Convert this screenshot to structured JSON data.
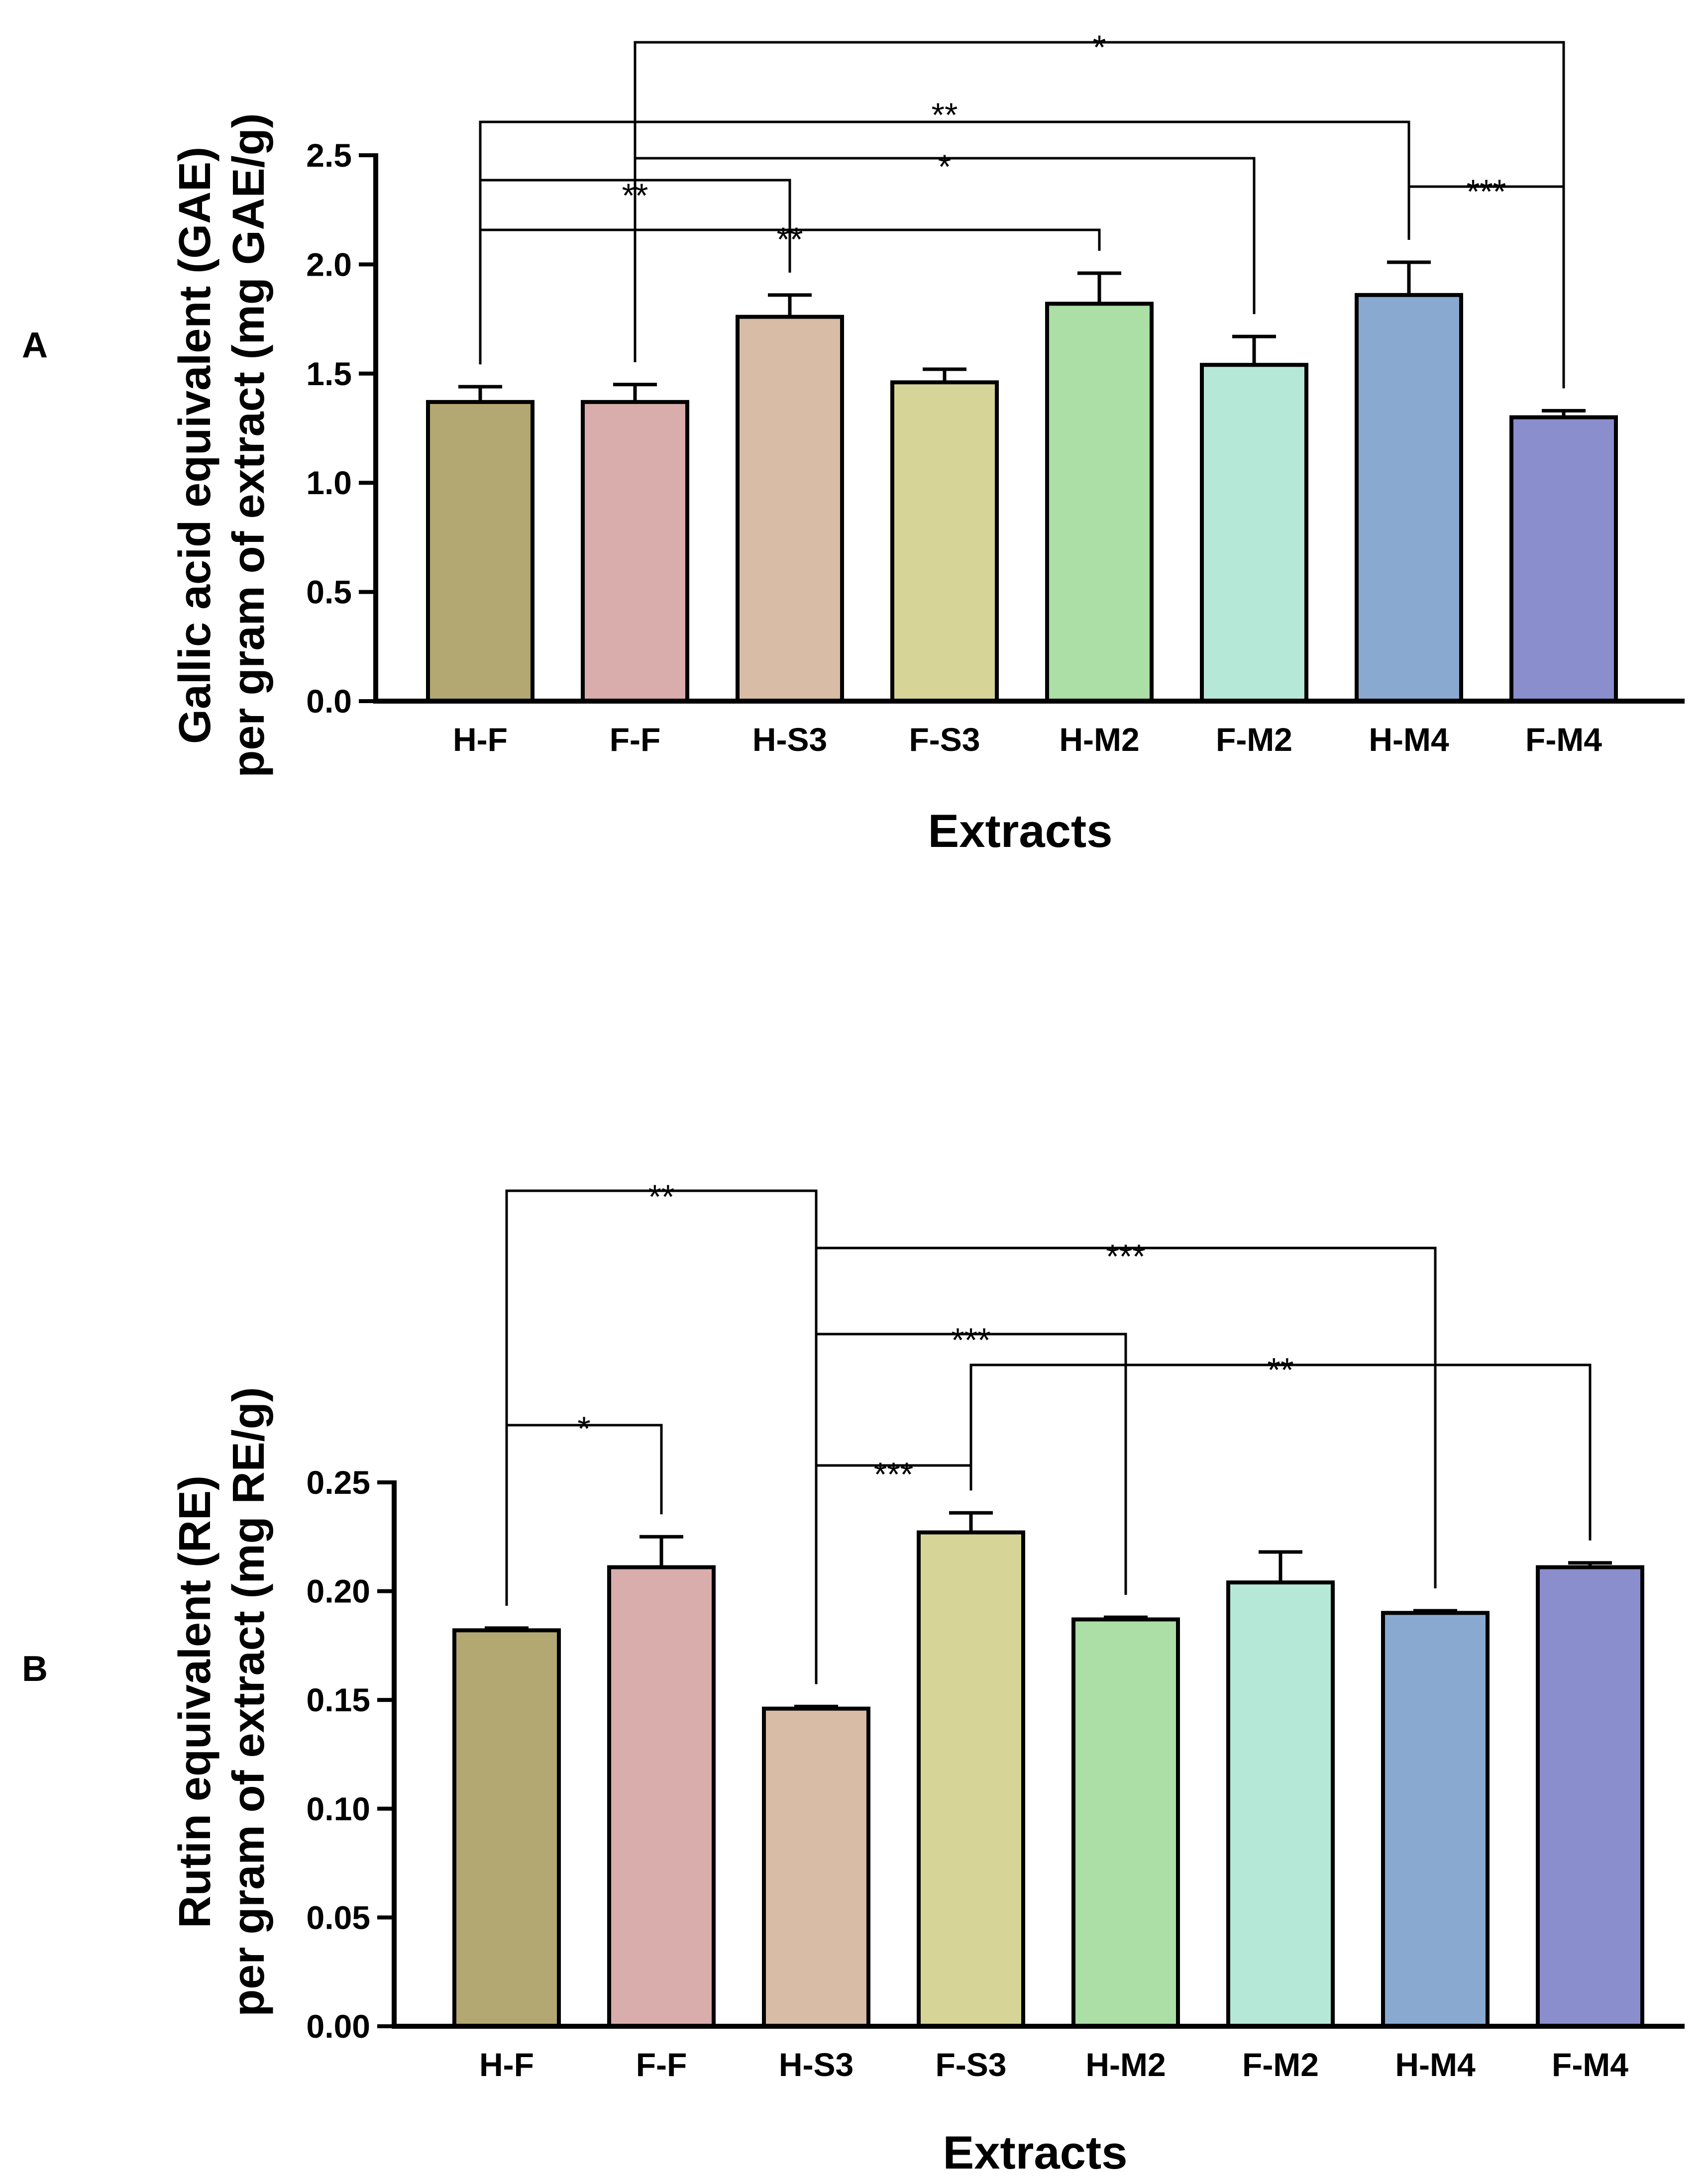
{
  "chart_data": [
    {
      "panel": "A",
      "type": "bar",
      "categories": [
        "H-F",
        "F-F",
        "H-S3",
        "F-S3",
        "H-M2",
        "F-M2",
        "H-M4",
        "F-M4"
      ],
      "values": [
        1.37,
        1.37,
        1.76,
        1.46,
        1.82,
        1.54,
        1.86,
        1.3
      ],
      "errors": [
        0.07,
        0.08,
        0.1,
        0.06,
        0.14,
        0.13,
        0.15,
        0.03
      ],
      "colors": [
        "#b3a772",
        "#d8adab",
        "#d9bca6",
        "#d6d597",
        "#acdfa6",
        "#b6e8d8",
        "#89a9d1",
        "#8a8ecc"
      ],
      "ylim": [
        0,
        2.5
      ],
      "yticks": [
        "0.0",
        "0.5",
        "1.0",
        "1.5",
        "2.0",
        "2.5"
      ],
      "xlabel": "Extracts",
      "ylabel_line1": "Gallic acid equivalent (GAE)",
      "ylabel_line2": "per gram of extract (mg GAE/g)",
      "significance": [
        {
          "from": 1,
          "to": 7,
          "label": "*"
        },
        {
          "from": 0,
          "to": 6,
          "label": "**"
        },
        {
          "from": 0,
          "to": 2,
          "label": "**"
        },
        {
          "from": 1,
          "to": 5,
          "label": "*"
        },
        {
          "from": 0,
          "to": 4,
          "label": "**"
        },
        {
          "from": 6,
          "to": 7,
          "label": "***"
        }
      ]
    },
    {
      "panel": "B",
      "type": "bar",
      "categories": [
        "H-F",
        "F-F",
        "H-S3",
        "F-S3",
        "H-M2",
        "F-M2",
        "H-M4",
        "F-M4"
      ],
      "values": [
        0.182,
        0.211,
        0.146,
        0.227,
        0.187,
        0.204,
        0.19,
        0.211
      ],
      "errors": [
        0.001,
        0.014,
        0.001,
        0.009,
        0.001,
        0.014,
        0.001,
        0.002
      ],
      "colors": [
        "#b3a772",
        "#d8adab",
        "#d9bca6",
        "#d6d597",
        "#acdfa6",
        "#b6e8d8",
        "#89a9d1",
        "#8a8ecc"
      ],
      "ylim": [
        0,
        0.25
      ],
      "yticks": [
        "0.00",
        "0.05",
        "0.10",
        "0.15",
        "0.20",
        "0.25"
      ],
      "xlabel": "Extracts",
      "ylabel_line1": "Rutin equivalent (RE)",
      "ylabel_line2": "per gram of extract (mg RE/g)",
      "significance": [
        {
          "from": 0,
          "to": 2,
          "label": "**"
        },
        {
          "from": 2,
          "to": 6,
          "label": "***"
        },
        {
          "from": 2,
          "to": 4,
          "label": "***"
        },
        {
          "from": 3,
          "to": 7,
          "label": "**"
        },
        {
          "from": 0,
          "to": 1,
          "label": "*"
        },
        {
          "from": 2,
          "to": 3,
          "label": "***"
        }
      ]
    }
  ]
}
